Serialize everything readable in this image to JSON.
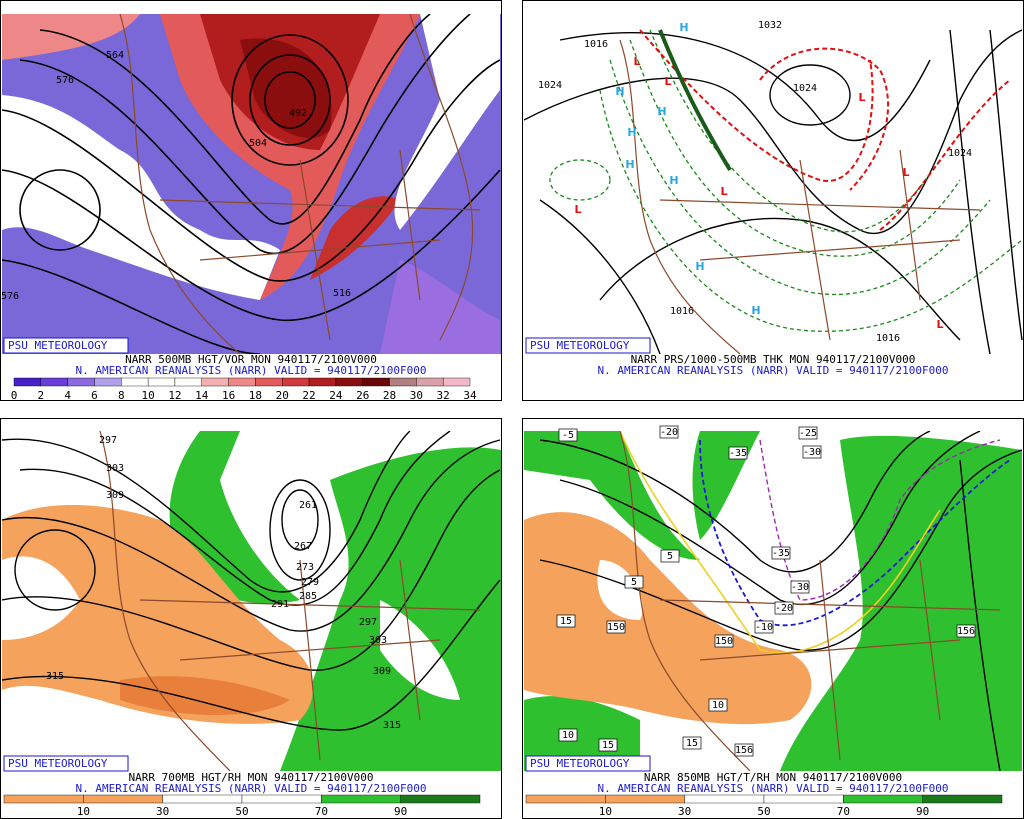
{
  "panels": [
    {
      "credit": "PSU METEOROLOGY",
      "title": "NARR 500MB HGT/VOR MON 940117/2100V000",
      "subtitle": "N. AMERICAN REANALYSIS (NARR) VALID = 940117/2100F000",
      "colorbar_labels": [
        0,
        2,
        4,
        6,
        8,
        10,
        12,
        14,
        16,
        18,
        20,
        22,
        24,
        26,
        28,
        30,
        32,
        34
      ],
      "contour_labels": [
        "564",
        "576",
        "492",
        "504",
        "516",
        "576"
      ]
    },
    {
      "credit": "PSU METEOROLOGY",
      "title": "NARR PRS/1000-500MB THK MON 940117/2100V000",
      "subtitle": "N. AMERICAN REANALYSIS (NARR) VALID = 940117/2100F000",
      "contour_labels": [
        "1016",
        "1024",
        "1032",
        "1024",
        "1024",
        "1016",
        "1016",
        "H",
        "H",
        "H",
        "H",
        "H",
        "H",
        "H",
        "H",
        "L",
        "L",
        "L",
        "L",
        "L",
        "L",
        "L"
      ]
    },
    {
      "credit": "PSU METEOROLOGY",
      "title": "NARR 700MB HGT/RH MON 940117/2100V000",
      "subtitle": "N. AMERICAN REANALYSIS (NARR) VALID = 940117/2100F000",
      "colorbar_labels": [
        10,
        30,
        50,
        70,
        90
      ],
      "contour_labels": [
        "297",
        "303",
        "309",
        "261",
        "267",
        "273",
        "279",
        "285",
        "291",
        "297",
        "303",
        "309",
        "315",
        "315"
      ]
    },
    {
      "credit": "PSU METEOROLOGY",
      "title": "NARR 850MB HGT/T/RH MON 940117/2100V000",
      "subtitle": "N. AMERICAN REANALYSIS (NARR) VALID = 940117/2100F000",
      "colorbar_labels": [
        10,
        30,
        50,
        70,
        90
      ],
      "contour_labels": [
        "-5",
        "-20",
        "-25",
        "-35",
        "-30",
        "-35",
        "-30",
        "-20",
        "-10",
        "5",
        "5",
        "15",
        "150",
        "150",
        "10",
        "10",
        "15",
        "15",
        "156",
        "156"
      ]
    }
  ]
}
